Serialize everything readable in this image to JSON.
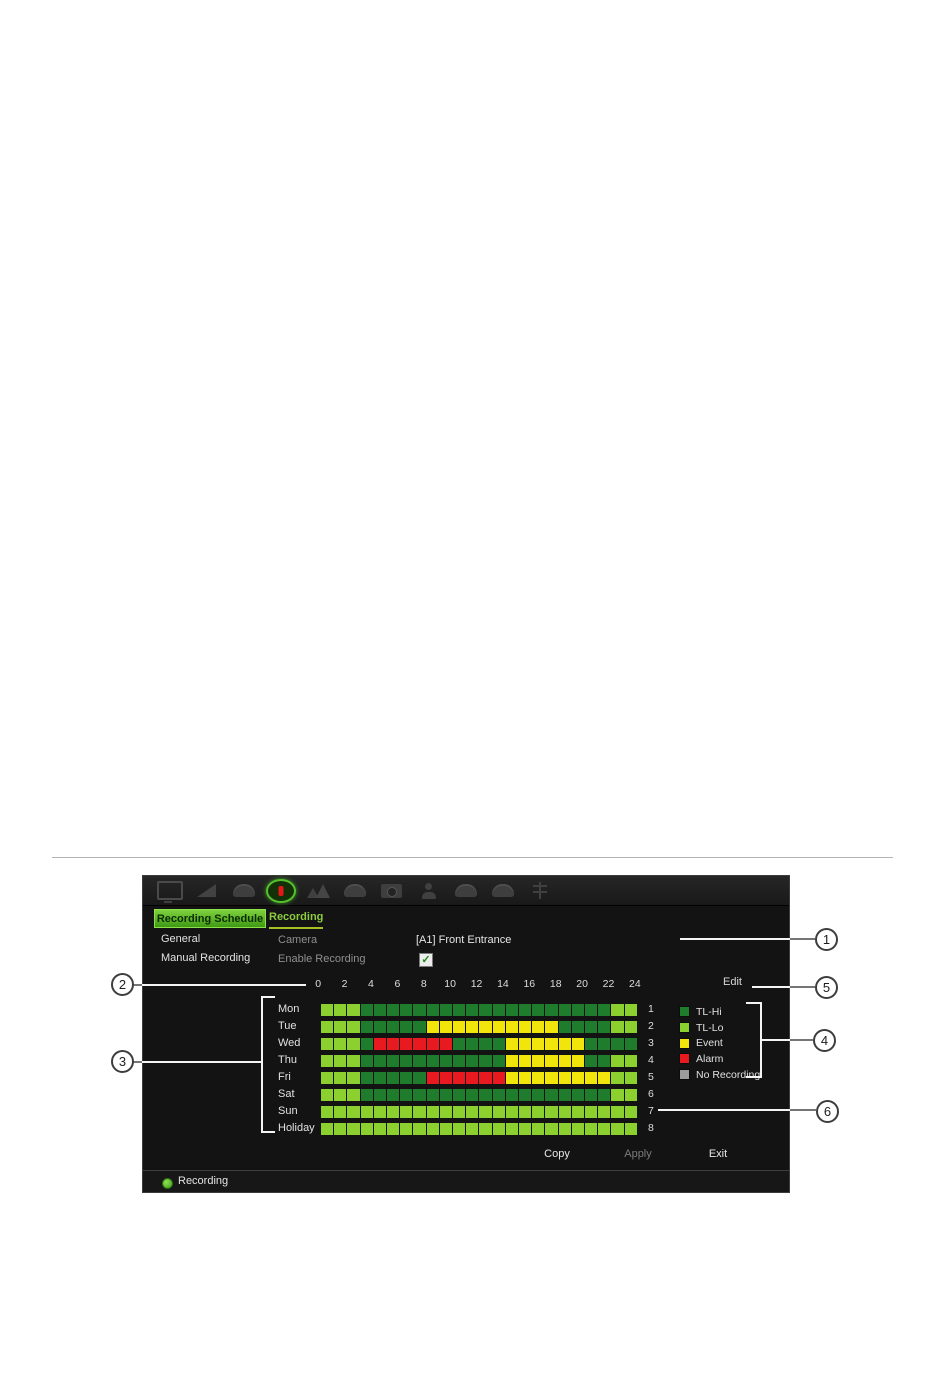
{
  "colors": {
    "tl_hi": "#1e7c2c",
    "tl_lo": "#8bd02f",
    "event": "#f2e50c",
    "alarm": "#e8191f",
    "no_recording": "#9c9c9c",
    "accent_green": "#6fc62e"
  },
  "toolbar": {
    "icons": [
      {
        "name": "display",
        "shape": "monitor",
        "active": false
      },
      {
        "name": "search",
        "shape": "wedge",
        "active": false
      },
      {
        "name": "archive",
        "shape": "dome",
        "active": false
      },
      {
        "name": "recording",
        "shape": "record",
        "active": true
      },
      {
        "name": "vca",
        "shape": "mountains",
        "active": false
      },
      {
        "name": "ptz",
        "shape": "dome",
        "active": false
      },
      {
        "name": "camera-setup",
        "shape": "camera",
        "active": false
      },
      {
        "name": "user",
        "shape": "person",
        "active": false
      },
      {
        "name": "network",
        "shape": "dome",
        "active": false
      },
      {
        "name": "system",
        "shape": "dome",
        "active": false
      },
      {
        "name": "storage",
        "shape": "tree",
        "active": false
      }
    ]
  },
  "tabs": {
    "primary": "Recording Schedule",
    "secondary": "Recording"
  },
  "sidebar": {
    "items": [
      "General",
      "Manual Recording"
    ]
  },
  "form": {
    "camera_label": "Camera",
    "camera_value": "[A1] Front Entrance",
    "enable_label": "Enable Recording",
    "enable_checked": true,
    "check_glyph": "✓"
  },
  "schedule": {
    "hour_labels": [
      "0",
      "2",
      "4",
      "6",
      "8",
      "10",
      "12",
      "14",
      "16",
      "18",
      "20",
      "22",
      "24"
    ],
    "edit_label": "Edit",
    "rows": [
      {
        "day": "Mon",
        "num": "1",
        "cells": "LLLDDDDDDDDDDDDDDDDDDDLL"
      },
      {
        "day": "Tue",
        "num": "2",
        "cells": "LLLDDDDDYYYYYYYYYYDDDDLL"
      },
      {
        "day": "Wed",
        "num": "3",
        "cells": "LLLDRRRRRRDDDDYYYYYYDDDD"
      },
      {
        "day": "Thu",
        "num": "4",
        "cells": "LLLDDDDDDDDDDDYYYYYYDDLL"
      },
      {
        "day": "Fri",
        "num": "5",
        "cells": "LLLDDDDDRRRRRRYYYYYYYYLL"
      },
      {
        "day": "Sat",
        "num": "6",
        "cells": "LLLDDDDDDDDDDDDDDDDDDDLL"
      },
      {
        "day": "Sun",
        "num": "7",
        "cells": "LLLLLLLLLLLLLLLLLLLLLLLL"
      },
      {
        "day": "Holiday",
        "num": "8",
        "cells": "LLLLLLLLLLLLLLLLLLLLLLLL"
      }
    ],
    "cell_color_map": {
      "D": "tl_hi",
      "L": "tl_lo",
      "Y": "event",
      "R": "alarm"
    }
  },
  "legend": {
    "items": [
      {
        "label": "TL-Hi",
        "color_key": "tl_hi"
      },
      {
        "label": "TL-Lo",
        "color_key": "tl_lo"
      },
      {
        "label": "Event",
        "color_key": "event"
      },
      {
        "label": "Alarm",
        "color_key": "alarm"
      },
      {
        "label": "No Recording",
        "color_key": "no_recording"
      }
    ]
  },
  "buttons": {
    "copy": "Copy",
    "apply": "Apply",
    "exit": "Exit"
  },
  "status_bar": {
    "label": "Recording"
  },
  "callouts": [
    {
      "label": "1"
    },
    {
      "label": "2"
    },
    {
      "label": "3"
    },
    {
      "label": "4"
    },
    {
      "label": "5"
    },
    {
      "label": "6"
    }
  ]
}
